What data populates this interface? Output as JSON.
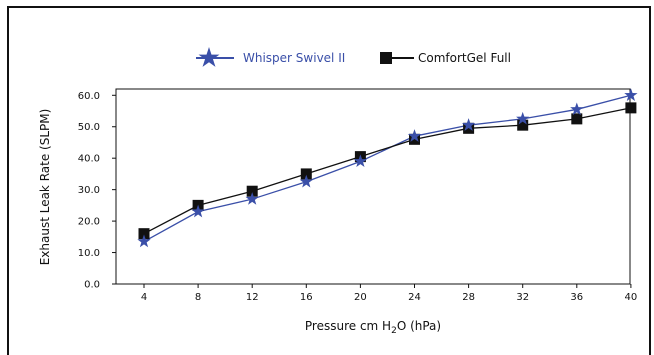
{
  "chart_data": {
    "type": "line",
    "title": "",
    "xlabel": "Pressure cm H2O (hPa)",
    "xlabel_parts": [
      "Pressure cm H",
      "2",
      "O (hPa)"
    ],
    "ylabel": "Exhaust Leak Rate (SLPM)",
    "x": [
      4,
      8,
      12,
      16,
      20,
      24,
      28,
      32,
      36,
      40
    ],
    "x_tick_labels": [
      "4",
      "8",
      "12",
      "16",
      "20",
      "24",
      "28",
      "32",
      "36",
      "40"
    ],
    "y_tick_labels": [
      "0.0",
      "10.0",
      "20.0",
      "30.0",
      "40.0",
      "50.0",
      "60.0"
    ],
    "ylim": [
      0,
      62
    ],
    "grid": false,
    "legend_position": "top",
    "series": [
      {
        "name": "Whisper Swivel II",
        "marker": "star",
        "color": "#3a4fa8",
        "values": [
          13.5,
          23.0,
          27.0,
          32.5,
          39.0,
          47.0,
          50.5,
          52.5,
          55.5,
          60.0
        ]
      },
      {
        "name": "ComfortGel Full",
        "marker": "square",
        "color": "#111111",
        "values": [
          16.0,
          25.0,
          29.5,
          35.0,
          40.5,
          46.0,
          49.5,
          50.5,
          52.5,
          56.0
        ]
      }
    ]
  }
}
